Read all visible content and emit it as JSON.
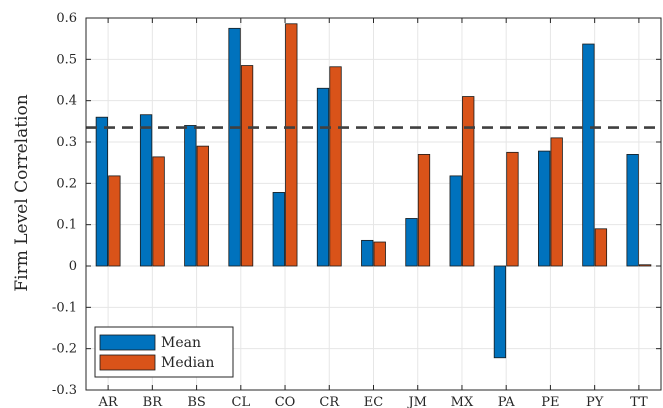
{
  "chart_data": {
    "type": "bar",
    "categories": [
      "AR",
      "BR",
      "BS",
      "CL",
      "CO",
      "CR",
      "EC",
      "JM",
      "MX",
      "PA",
      "PE",
      "PY",
      "TT"
    ],
    "series": [
      {
        "name": "Mean",
        "color": "#0072BD",
        "values": [
          0.36,
          0.366,
          0.34,
          0.575,
          0.178,
          0.43,
          0.062,
          0.115,
          0.218,
          -0.222,
          0.278,
          0.537,
          0.27
        ]
      },
      {
        "name": "Median",
        "color": "#D95319",
        "values": [
          0.218,
          0.264,
          0.29,
          0.485,
          0.586,
          0.482,
          0.058,
          0.27,
          0.41,
          0.275,
          0.31,
          0.09,
          0.003
        ]
      }
    ],
    "reference_line": {
      "y": 0.335,
      "style": "dashed",
      "color": "#404040"
    },
    "title": "",
    "xlabel": "",
    "ylabel": "Firm Level Correlation",
    "ylim": [
      -0.3,
      0.6
    ],
    "yticks": [
      "-0.3",
      "-0.2",
      "-0.1",
      "0",
      "0.1",
      "0.2",
      "0.3",
      "0.4",
      "0.5",
      "0.6"
    ],
    "grid": true,
    "legend_position": "bottom-left"
  }
}
